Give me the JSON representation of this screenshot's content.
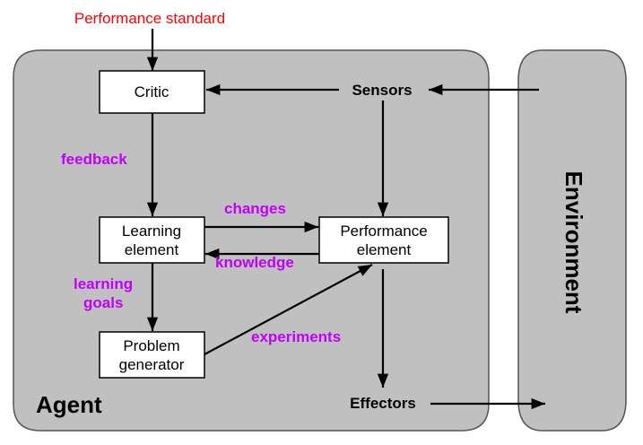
{
  "diagram": {
    "performance_standard": "Performance standard",
    "agent": "Agent",
    "environment": "Environment",
    "nodes": {
      "critic": "Critic",
      "learning_element": [
        "Learning",
        "element"
      ],
      "performance_element": [
        "Performance",
        "element"
      ],
      "problem_generator": [
        "Problem",
        "generator"
      ],
      "sensors": "Sensors",
      "effectors": "Effectors"
    },
    "edges": {
      "feedback": "feedback",
      "changes": "changes",
      "knowledge": "knowledge",
      "learning_goals": [
        "learning",
        "goals"
      ],
      "experiments": "experiments"
    },
    "colors": {
      "performance_standard": "#ff0000",
      "edge_labels": "#c000ff",
      "container_fill": "#c0c0c0"
    }
  }
}
